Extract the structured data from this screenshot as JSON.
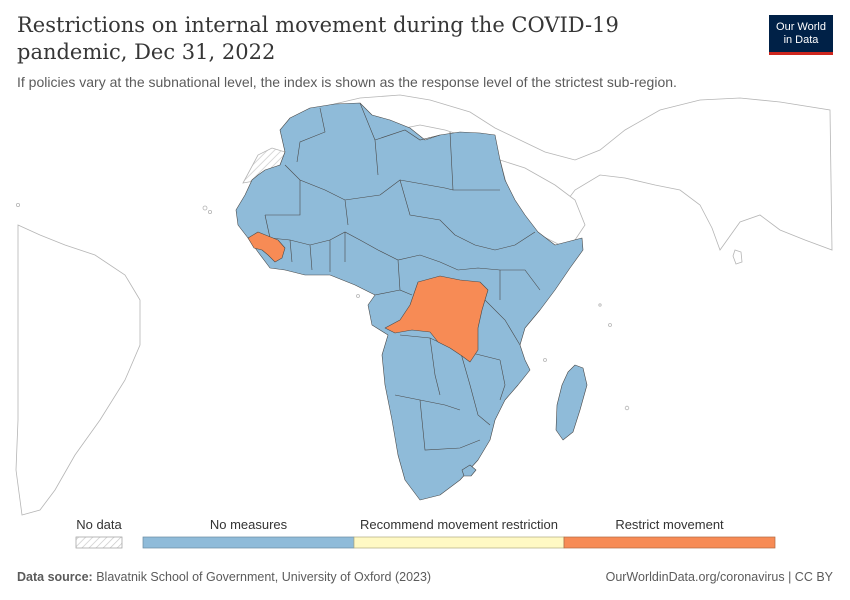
{
  "header": {
    "title": "Restrictions on internal movement during the COVID-19 pandemic, Dec 31, 2022",
    "subtitle": "If policies vary at the subnational level, the index is shown as the response level of the strictest sub-region."
  },
  "logo": {
    "line1": "Our World",
    "line2": "in Data"
  },
  "legend": {
    "no_data_label": "No data",
    "categories": [
      {
        "label": "No measures",
        "color": "#8fbbd9"
      },
      {
        "label": "Recommend movement restriction",
        "color": "#fff9c4"
      },
      {
        "label": "Restrict movement",
        "color": "#f78b55"
      }
    ]
  },
  "colors": {
    "no_measures": "#8fbbd9",
    "restrict": "#f78b55",
    "outline": "#b5b5b5",
    "border": "#4a4a4a"
  },
  "footer": {
    "source_label": "Data source:",
    "source_text": "Blavatnik School of Government, University of Oxford (2023)",
    "link": "OurWorldinData.org/coronavirus | CC BY"
  }
}
